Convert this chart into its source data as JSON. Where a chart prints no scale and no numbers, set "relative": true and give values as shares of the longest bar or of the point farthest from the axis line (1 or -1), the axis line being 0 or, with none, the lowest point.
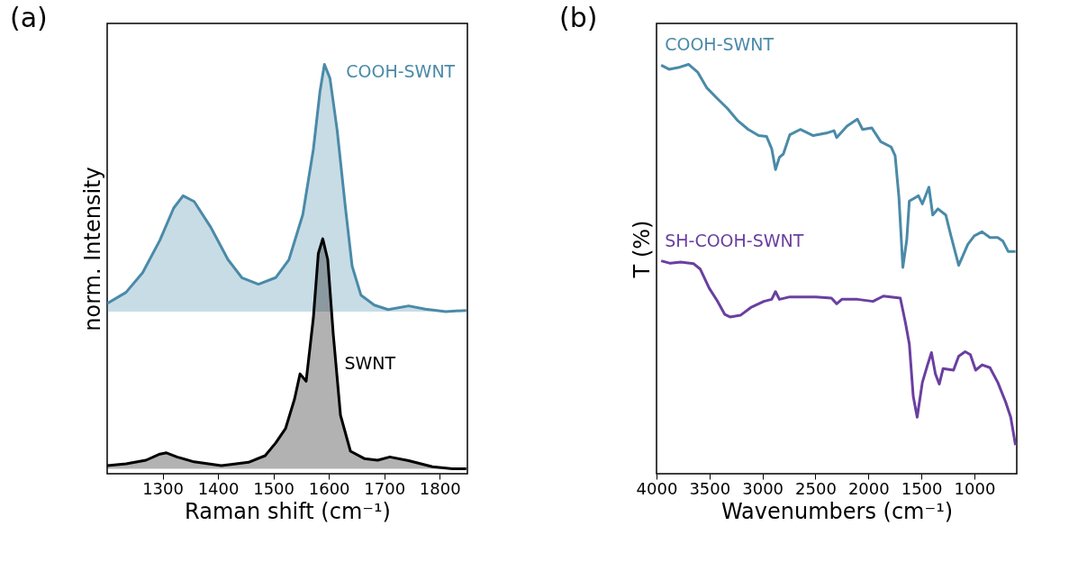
{
  "chart_data": [
    {
      "type": "area",
      "title": "(a)",
      "xlabel": "Raman shift (cm⁻¹)",
      "ylabel": "norm. Intensity",
      "relative": true,
      "xlim": [
        1200,
        1850
      ],
      "xticks": [
        1300,
        1400,
        1500,
        1600,
        1700,
        1800
      ],
      "series": [
        {
          "name": "COOH-SWNT",
          "color": "#4a8aa8",
          "x": [
            1200,
            1234,
            1264,
            1295,
            1320,
            1337,
            1357,
            1387,
            1418,
            1443,
            1473,
            1504,
            1528,
            1553,
            1572,
            1584,
            1592,
            1602,
            1615,
            1630,
            1642,
            1658,
            1682,
            1707,
            1744,
            1774,
            1811,
            1848
          ],
          "values": [
            0.416,
            0.443,
            0.491,
            0.57,
            0.649,
            0.679,
            0.665,
            0.602,
            0.523,
            0.479,
            0.463,
            0.479,
            0.523,
            0.633,
            0.792,
            0.934,
            1.0,
            0.966,
            0.839,
            0.649,
            0.507,
            0.436,
            0.412,
            0.401,
            0.41,
            0.402,
            0.396,
            0.399
          ]
        },
        {
          "name": "SWNT",
          "color": "#000000",
          "x": [
            1200,
            1234,
            1270,
            1295,
            1307,
            1326,
            1357,
            1406,
            1455,
            1485,
            1504,
            1522,
            1538,
            1548,
            1559,
            1572,
            1581,
            1589,
            1598,
            1608,
            1621,
            1639,
            1664,
            1688,
            1710,
            1744,
            1787,
            1823,
            1848
          ],
          "values": [
            0.02,
            0.024,
            0.033,
            0.048,
            0.051,
            0.041,
            0.029,
            0.02,
            0.028,
            0.044,
            0.075,
            0.111,
            0.182,
            0.244,
            0.226,
            0.38,
            0.538,
            0.574,
            0.523,
            0.34,
            0.143,
            0.055,
            0.037,
            0.033,
            0.041,
            0.032,
            0.017,
            0.012,
            0.012
          ]
        }
      ]
    },
    {
      "type": "line",
      "title": "(b)",
      "xlabel": "Wavenumbers (cm⁻¹)",
      "ylabel": "T (%)",
      "relative": true,
      "xlim": [
        4000,
        600
      ],
      "xticks": [
        4000,
        3500,
        3000,
        2500,
        2000,
        1500,
        1000
      ],
      "series": [
        {
          "name": "COOH-SWNT",
          "color": "#4a8aa8",
          "x": [
            3956,
            3882,
            3796,
            3698,
            3612,
            3527,
            3428,
            3330,
            3232,
            3134,
            3036,
            2962,
            2913,
            2877,
            2840,
            2803,
            2742,
            2643,
            2521,
            2398,
            2325,
            2300,
            2202,
            2104,
            2055,
            1969,
            1883,
            1785,
            1748,
            1712,
            1675,
            1638,
            1614,
            1528,
            1491,
            1429,
            1393,
            1344,
            1270,
            1221,
            1148,
            1062,
            1001,
            927,
            853,
            779,
            730,
            681,
            612
          ],
          "values": [
            0.998,
            0.988,
            0.992,
            1.0,
            0.981,
            0.943,
            0.917,
            0.892,
            0.862,
            0.841,
            0.826,
            0.824,
            0.794,
            0.743,
            0.773,
            0.781,
            0.828,
            0.841,
            0.826,
            0.832,
            0.838,
            0.821,
            0.849,
            0.866,
            0.841,
            0.845,
            0.811,
            0.798,
            0.777,
            0.675,
            0.504,
            0.572,
            0.666,
            0.679,
            0.659,
            0.7,
            0.632,
            0.647,
            0.632,
            0.581,
            0.509,
            0.56,
            0.581,
            0.591,
            0.577,
            0.577,
            0.568,
            0.543,
            0.543
          ]
        },
        {
          "name": "SH-COOH-SWNT",
          "color": "#6a3fa0",
          "x": [
            3956,
            3870,
            3772,
            3649,
            3588,
            3502,
            3428,
            3355,
            3306,
            3208,
            3110,
            2987,
            2913,
            2877,
            2840,
            2742,
            2496,
            2349,
            2300,
            2251,
            2104,
            1957,
            1859,
            1699,
            1650,
            1614,
            1577,
            1540,
            1491,
            1442,
            1405,
            1368,
            1331,
            1295,
            1197,
            1148,
            1087,
            1038,
            988,
            927,
            853,
            779,
            706,
            657,
            612
          ],
          "values": [
            0.52,
            0.514,
            0.517,
            0.513,
            0.5,
            0.453,
            0.423,
            0.389,
            0.383,
            0.387,
            0.406,
            0.421,
            0.426,
            0.445,
            0.426,
            0.432,
            0.432,
            0.429,
            0.415,
            0.426,
            0.426,
            0.421,
            0.434,
            0.429,
            0.368,
            0.317,
            0.189,
            0.138,
            0.223,
            0.266,
            0.296,
            0.244,
            0.219,
            0.257,
            0.253,
            0.287,
            0.298,
            0.291,
            0.253,
            0.266,
            0.259,
            0.223,
            0.176,
            0.138,
            0.07
          ]
        }
      ]
    }
  ]
}
